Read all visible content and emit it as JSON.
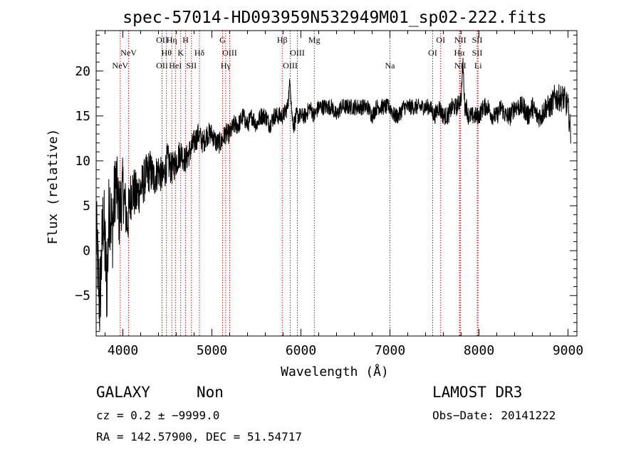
{
  "chart_data": {
    "type": "line",
    "title": "spec-57014-HD093959N532949M01_sp02-222.fits",
    "xlabel": "Wavelength (Å)",
    "ylabel": "Flux (relative)",
    "xlim": [
      3700,
      9100
    ],
    "ylim": [
      -9.5,
      24.5
    ],
    "x_ticks": [
      4000,
      5000,
      6000,
      7000,
      8000,
      9000
    ],
    "x_tick_labels": [
      "4000",
      "5000",
      "6000",
      "7000",
      "8000",
      "9000"
    ],
    "y_ticks": [
      -5,
      0,
      5,
      10,
      15,
      20
    ],
    "y_tick_labels": [
      "−5",
      "0",
      "5",
      "10",
      "15",
      "20"
    ],
    "spectrum": {
      "name": "flux",
      "x": [
        3700,
        3740,
        3780,
        3820,
        3850,
        3880,
        3920,
        3960,
        4000,
        4050,
        4100,
        4150,
        4200,
        4250,
        4300,
        4350,
        4400,
        4450,
        4500,
        4550,
        4600,
        4650,
        4700,
        4750,
        4800,
        4850,
        4900,
        4950,
        5000,
        5050,
        5100,
        5150,
        5200,
        5250,
        5300,
        5350,
        5400,
        5450,
        5500,
        5550,
        5600,
        5650,
        5700,
        5750,
        5800,
        5850,
        5880,
        5900,
        5920,
        5950,
        6000,
        6050,
        6100,
        6150,
        6200,
        6250,
        6300,
        6350,
        6400,
        6450,
        6500,
        6550,
        6600,
        6650,
        6700,
        6750,
        6800,
        6850,
        6900,
        6950,
        7000,
        7050,
        7100,
        7150,
        7200,
        7250,
        7300,
        7350,
        7400,
        7450,
        7500,
        7550,
        7600,
        7650,
        7700,
        7750,
        7800,
        7820,
        7840,
        7860,
        7880,
        7900,
        7950,
        8000,
        8050,
        8100,
        8150,
        8200,
        8250,
        8300,
        8350,
        8400,
        8450,
        8500,
        8550,
        8600,
        8650,
        8700,
        8750,
        8800,
        8850,
        8900,
        8950,
        9000,
        9030
      ],
      "y": [
        2,
        -6,
        4,
        -4,
        6,
        2,
        8,
        4,
        7,
        3,
        7,
        6,
        7,
        8,
        9,
        8,
        9,
        8,
        10,
        9,
        10,
        11,
        10,
        11,
        12,
        13,
        12,
        13,
        13,
        12,
        12,
        13,
        13,
        14,
        14,
        15,
        14,
        15,
        14,
        15,
        15,
        14,
        15,
        15,
        15,
        16,
        19,
        15,
        14,
        15,
        15,
        15,
        16,
        15,
        16,
        16,
        16,
        16,
        15,
        16,
        16,
        16,
        16,
        16,
        16,
        16,
        15,
        16,
        16,
        16,
        16,
        15,
        15,
        16,
        16,
        16,
        16,
        16,
        16,
        16,
        15,
        16,
        15,
        15,
        16,
        16,
        17,
        21,
        16,
        16,
        15,
        15,
        15,
        15,
        16,
        16,
        15,
        15,
        16,
        15,
        15,
        16,
        16,
        16,
        15,
        16,
        15,
        15,
        16,
        16,
        17,
        17,
        17,
        16,
        13
      ],
      "noise": [
        5,
        5,
        5,
        5,
        5,
        5,
        4,
        4,
        3.5,
        3,
        3,
        2.8,
        2.5,
        2.5,
        2.5,
        2.2,
        2,
        2,
        2,
        1.8,
        1.8,
        1.6,
        1.5,
        1.5,
        1.5,
        1.3,
        1.3,
        1.3,
        1.2,
        1.2,
        1.2,
        1.2,
        1.1,
        1.1,
        1.1,
        1,
        1,
        1,
        1,
        1,
        1,
        1,
        1,
        1,
        1,
        1,
        1,
        1,
        1,
        1,
        0.9,
        0.9,
        0.9,
        0.9,
        0.9,
        0.9,
        0.9,
        0.9,
        0.9,
        0.9,
        0.9,
        0.9,
        0.9,
        0.9,
        0.9,
        0.9,
        0.9,
        0.9,
        0.9,
        0.9,
        0.9,
        0.9,
        0.9,
        0.9,
        0.9,
        0.9,
        0.9,
        0.9,
        0.9,
        0.9,
        1,
        1,
        1,
        1,
        1,
        1,
        1,
        1,
        1,
        1,
        1,
        1,
        1,
        1,
        1,
        1,
        1,
        1,
        1.1,
        1.1,
        1.1,
        1.1,
        1.1,
        1.2,
        1.2,
        1.2,
        1.2,
        1.3,
        1.3,
        1.3,
        1.5,
        1.5,
        1.5,
        1.5,
        1.5
      ]
    },
    "lines": [
      {
        "wl": 3970,
        "label": "NeV",
        "tier": 3
      },
      {
        "wl": 4065,
        "label": "NeV",
        "tier": 2
      },
      {
        "wl": 4440,
        "label": "OII",
        "tier": 1
      },
      {
        "wl": 4440,
        "label": "OII",
        "tier": 3
      },
      {
        "wl": 4490,
        "label": "Hθ",
        "tier": 2
      },
      {
        "wl": 4550,
        "label": "Hη",
        "tier": 1
      },
      {
        "wl": 4590,
        "label": "HeI",
        "tier": 3
      },
      {
        "wl": 4650,
        "label": "K",
        "tier": 2
      },
      {
        "wl": 4705,
        "label": "H",
        "tier": 1
      },
      {
        "wl": 4770,
        "label": "SII",
        "tier": 3
      },
      {
        "wl": 4860,
        "label": "Hδ",
        "tier": 2
      },
      {
        "wl": 5120,
        "label": "G",
        "tier": 1
      },
      {
        "wl": 5155,
        "label": "Hγ",
        "tier": 3
      },
      {
        "wl": 5200,
        "label": "OIII",
        "tier": 2
      },
      {
        "wl": 5790,
        "label": "Hβ",
        "tier": 1
      },
      {
        "wl": 5880,
        "label": "OIII",
        "tier": 3
      },
      {
        "wl": 5960,
        "label": "OIII",
        "tier": 2
      },
      {
        "wl": 6150,
        "label": "Mg",
        "tier": 1
      },
      {
        "wl": 7000,
        "label": "Na",
        "tier": 3
      },
      {
        "wl": 7480,
        "label": "OI",
        "tier": 2
      },
      {
        "wl": 7570,
        "label": "OI",
        "tier": 1
      },
      {
        "wl": 7780,
        "label": "Hα",
        "tier": 2
      },
      {
        "wl": 7790,
        "label": "NII",
        "tier": 1
      },
      {
        "wl": 7790,
        "label": "NII",
        "tier": 3
      },
      {
        "wl": 7980,
        "label": "SII",
        "tier": 1
      },
      {
        "wl": 7980,
        "label": "SII",
        "tier": 2
      },
      {
        "wl": 7990,
        "label": "Li",
        "tier": 3
      }
    ]
  },
  "info": {
    "class": "GALAXY",
    "subclass": "Non",
    "survey": "LAMOST DR3",
    "cz": "cz = 0.2 ± −9999.0",
    "obs_date": "Obs−Date: 20141222",
    "coords": "RA = 142.57900, DEC =  51.54717"
  },
  "colors": {
    "line_marker": "#c00000",
    "spectrum": "#000000"
  }
}
